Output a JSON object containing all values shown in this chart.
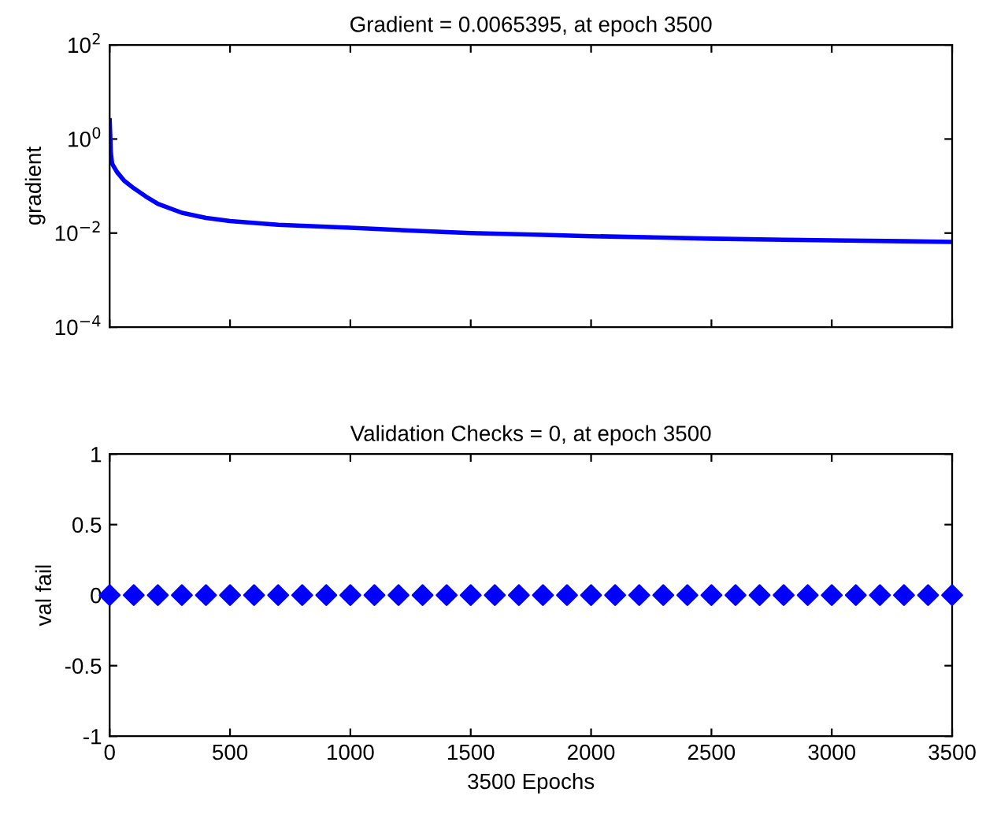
{
  "chart_data": [
    {
      "type": "line",
      "title": "Gradient = 0.0065395, at epoch 3500",
      "ylabel": "gradient",
      "log": "y",
      "tick_labels": "y",
      "marker": "none",
      "xlim": [
        0,
        3500
      ],
      "xticks": [
        0,
        500,
        1000,
        1500,
        2000,
        2500,
        3000,
        3500
      ],
      "ylim": [
        0.0001,
        100
      ],
      "yticks": [
        {
          "value": 0.0001,
          "label": "10$^{−4}$"
        },
        {
          "value": 0.01,
          "label": "10$^{−2}$"
        },
        {
          "value": 1,
          "label": "10$^{0}$"
        },
        {
          "value": 100,
          "label": "10$^{2}$"
        }
      ],
      "series": [
        {
          "color": "#0000ff",
          "x": [
            0,
            5,
            10,
            30,
            60,
            100,
            150,
            200,
            300,
            400,
            500,
            700,
            1000,
            1300,
            1500,
            1800,
            2000,
            2300,
            2500,
            2800,
            3000,
            3300,
            3500
          ],
          "values": [
            2.5,
            0.5,
            0.3,
            0.2,
            0.13,
            0.09,
            0.06,
            0.042,
            0.027,
            0.021,
            0.018,
            0.015,
            0.013,
            0.011,
            0.01,
            0.0092,
            0.0086,
            0.008,
            0.0076,
            0.0072,
            0.007,
            0.0067,
            0.0065
          ]
        }
      ]
    },
    {
      "type": "scatter",
      "title": "Validation Checks = 0, at epoch 3500",
      "xlabel": "3500 Epochs",
      "ylabel": "val fail",
      "marker": "diamond",
      "xlim": [
        0,
        3500
      ],
      "xticks": [
        0,
        500,
        1000,
        1500,
        2000,
        2500,
        3000,
        3500
      ],
      "ylim": [
        -1,
        1
      ],
      "yticks": [
        -1,
        -0.5,
        0,
        0.5,
        1
      ],
      "series": [
        {
          "color": "#0000ff",
          "x": [
            0,
            100,
            200,
            300,
            400,
            500,
            600,
            700,
            800,
            900,
            1000,
            1100,
            1200,
            1300,
            1400,
            1500,
            1600,
            1700,
            1800,
            1900,
            2000,
            2100,
            2200,
            2300,
            2400,
            2500,
            2600,
            2700,
            2800,
            2900,
            3000,
            3100,
            3200,
            3300,
            3400,
            3500
          ],
          "values": [
            0,
            0,
            0,
            0,
            0,
            0,
            0,
            0,
            0,
            0,
            0,
            0,
            0,
            0,
            0,
            0,
            0,
            0,
            0,
            0,
            0,
            0,
            0,
            0,
            0,
            0,
            0,
            0,
            0,
            0,
            0,
            0,
            0,
            0,
            0,
            0
          ]
        }
      ]
    }
  ]
}
